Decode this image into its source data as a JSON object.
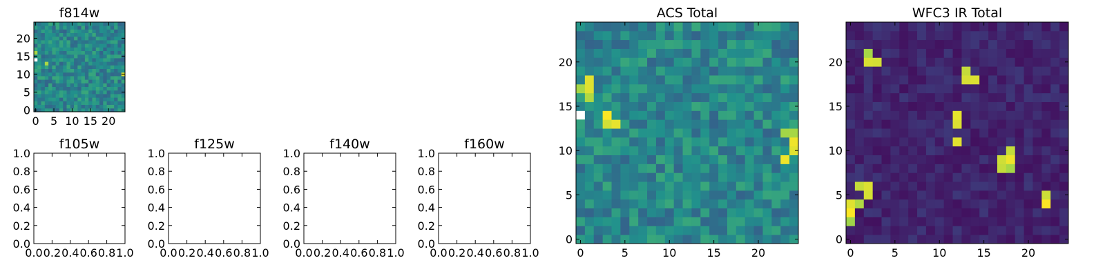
{
  "chart_data": [
    {
      "id": "f814w",
      "type": "heatmap",
      "title": "f814w",
      "colormap": "viridis",
      "size": [
        25,
        25
      ],
      "xlim": [
        0,
        24
      ],
      "ylim": [
        0,
        24
      ],
      "x_ticks": [
        "0",
        "5",
        "10",
        "15",
        "20"
      ],
      "y_ticks": [
        "0",
        "5",
        "10",
        "15",
        "20"
      ],
      "masked_lower_left": true,
      "bright_spots": [
        [
          0,
          16
        ],
        [
          3,
          13
        ],
        [
          24,
          10
        ]
      ],
      "seed": 11
    },
    {
      "id": "f105w",
      "type": "empty",
      "title": "f105w",
      "xlim": [
        0.0,
        1.0
      ],
      "ylim": [
        0.0,
        1.0
      ],
      "x_ticks": [
        "0.0",
        "0.2",
        "0.4",
        "0.6",
        "0.8",
        "1.0"
      ],
      "y_ticks": [
        "0.0",
        "0.2",
        "0.4",
        "0.6",
        "0.8",
        "1.0"
      ]
    },
    {
      "id": "f125w",
      "type": "empty",
      "title": "f125w",
      "xlim": [
        0.0,
        1.0
      ],
      "ylim": [
        0.0,
        1.0
      ],
      "x_ticks": [
        "0.0",
        "0.2",
        "0.4",
        "0.6",
        "0.8",
        "1.0"
      ],
      "y_ticks": [
        "0.0",
        "0.2",
        "0.4",
        "0.6",
        "0.8",
        "1.0"
      ]
    },
    {
      "id": "f140w",
      "type": "empty",
      "title": "f140w",
      "xlim": [
        0.0,
        1.0
      ],
      "ylim": [
        0.0,
        1.0
      ],
      "x_ticks": [
        "0.0",
        "0.2",
        "0.4",
        "0.6",
        "0.8",
        "1.0"
      ],
      "y_ticks": [
        "0.0",
        "0.2",
        "0.4",
        "0.6",
        "0.8",
        "1.0"
      ]
    },
    {
      "id": "f160w",
      "type": "empty",
      "title": "f160w",
      "xlim": [
        0.0,
        1.0
      ],
      "ylim": [
        0.0,
        1.0
      ],
      "x_ticks": [
        "0.0",
        "0.2",
        "0.4",
        "0.6",
        "0.8",
        "1.0"
      ],
      "y_ticks": [
        "0.0",
        "0.2",
        "0.4",
        "0.6",
        "0.8",
        "1.0"
      ]
    },
    {
      "id": "acs_total",
      "type": "heatmap",
      "title": "ACS Total",
      "colormap": "viridis",
      "size": [
        25,
        25
      ],
      "xlim": [
        0,
        24
      ],
      "ylim": [
        0,
        24
      ],
      "x_ticks": [
        "0",
        "5",
        "10",
        "15",
        "20"
      ],
      "y_ticks": [
        "0",
        "5",
        "10",
        "15",
        "20"
      ],
      "masked_lower_left": true,
      "bright_spots": [
        [
          0,
          17
        ],
        [
          1,
          17
        ],
        [
          1,
          18
        ],
        [
          1,
          16
        ],
        [
          3,
          13
        ],
        [
          3,
          14
        ],
        [
          4,
          13
        ],
        [
          24,
          10
        ],
        [
          24,
          11
        ],
        [
          23,
          12
        ],
        [
          23,
          9
        ],
        [
          24,
          12
        ]
      ],
      "seed": 7
    },
    {
      "id": "wfc3_ir_total",
      "type": "heatmap",
      "title": "WFC3 IR Total",
      "colormap": "viridis",
      "size": [
        25,
        25
      ],
      "xlim": [
        0,
        24
      ],
      "ylim": [
        0,
        24
      ],
      "x_ticks": [
        "0",
        "5",
        "10",
        "15",
        "20"
      ],
      "y_ticks": [
        "0",
        "5",
        "10",
        "15",
        "20"
      ],
      "masked_lower_left": false,
      "bright_spots": [
        [
          2,
          20
        ],
        [
          2,
          21
        ],
        [
          3,
          20
        ],
        [
          13,
          19
        ],
        [
          13,
          18
        ],
        [
          14,
          18
        ],
        [
          12,
          14
        ],
        [
          12,
          13
        ],
        [
          12,
          11
        ],
        [
          17,
          9
        ],
        [
          18,
          9
        ],
        [
          18,
          8
        ],
        [
          17,
          8
        ],
        [
          18,
          10
        ],
        [
          2,
          6
        ],
        [
          1,
          6
        ],
        [
          2,
          5
        ],
        [
          0,
          4
        ],
        [
          0,
          3
        ],
        [
          0,
          2
        ],
        [
          1,
          4
        ],
        [
          22,
          5
        ],
        [
          22,
          4
        ]
      ],
      "seed": 3
    }
  ]
}
